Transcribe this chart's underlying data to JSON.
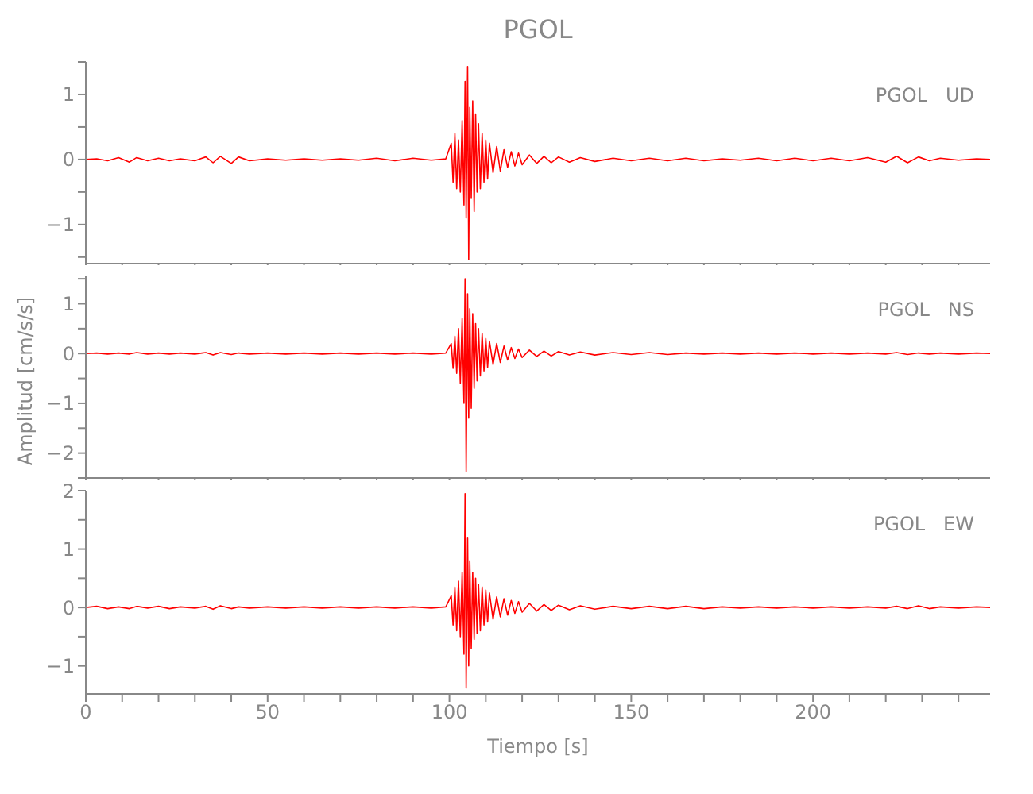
{
  "chart_data": [
    {
      "type": "line",
      "title": "PGOL",
      "annotations": [
        "PGOL   UD"
      ],
      "tick_labels": "y",
      "xlim": [
        0,
        248.7
      ],
      "ylim": [
        -1.6,
        1.5
      ],
      "xticks": [
        0,
        {
          "value": 10,
          "label": null
        },
        {
          "value": 20,
          "label": null
        },
        {
          "value": 30,
          "label": null
        },
        {
          "value": 40,
          "label": null
        },
        50,
        {
          "value": 60,
          "label": null
        },
        {
          "value": 70,
          "label": null
        },
        {
          "value": 80,
          "label": null
        },
        {
          "value": 90,
          "label": null
        },
        100,
        {
          "value": 110,
          "label": null
        },
        {
          "value": 120,
          "label": null
        },
        {
          "value": 130,
          "label": null
        },
        {
          "value": 140,
          "label": null
        },
        150,
        {
          "value": 160,
          "label": null
        },
        {
          "value": 170,
          "label": null
        },
        {
          "value": 180,
          "label": null
        },
        {
          "value": 190,
          "label": null
        },
        200,
        {
          "value": 210,
          "label": null
        },
        {
          "value": 220,
          "label": null
        },
        {
          "value": 230,
          "label": null
        },
        {
          "value": 240,
          "label": null
        }
      ],
      "yticks": [
        {
          "value": -1.5,
          "label": null
        },
        -1,
        {
          "value": -0.5,
          "label": null
        },
        0,
        {
          "value": 0.5,
          "label": null
        },
        1,
        {
          "value": 1.5,
          "label": null
        }
      ],
      "x": [
        0,
        3,
        6,
        9,
        12,
        14,
        17,
        20,
        23,
        26,
        30,
        33,
        35,
        37,
        40,
        42,
        45,
        50,
        55,
        60,
        65,
        70,
        75,
        80,
        85,
        90,
        95,
        99,
        100.5,
        101,
        101.5,
        102,
        102.5,
        103,
        103.5,
        104,
        104.3,
        104.6,
        105,
        105.3,
        105.6,
        106,
        106.4,
        106.8,
        107.2,
        107.6,
        108,
        108.5,
        109,
        109.5,
        110,
        110.5,
        111,
        112,
        113,
        114,
        115,
        116,
        117,
        118,
        119,
        120,
        122,
        124,
        126,
        128,
        130,
        133,
        136,
        140,
        145,
        150,
        155,
        160,
        165,
        170,
        175,
        180,
        185,
        190,
        195,
        200,
        205,
        210,
        215,
        220,
        223,
        226,
        229,
        232,
        235,
        240,
        245,
        248.7
      ],
      "series": [
        {
          "color": "#ff0000",
          "values": [
            0.0,
            0.01,
            -0.02,
            0.03,
            -0.04,
            0.03,
            -0.02,
            0.02,
            -0.02,
            0.01,
            -0.02,
            0.04,
            -0.05,
            0.05,
            -0.06,
            0.04,
            -0.02,
            0.01,
            -0.01,
            0.01,
            -0.01,
            0.01,
            -0.01,
            0.02,
            -0.02,
            0.02,
            -0.01,
            0.01,
            0.25,
            -0.35,
            0.4,
            -0.45,
            0.3,
            -0.5,
            0.6,
            -0.7,
            1.2,
            -0.9,
            1.43,
            -1.54,
            0.8,
            -0.6,
            0.9,
            -0.8,
            0.7,
            -0.5,
            0.55,
            -0.45,
            0.4,
            -0.35,
            0.3,
            -0.3,
            0.25,
            -0.2,
            0.2,
            -0.18,
            0.15,
            -0.12,
            0.12,
            -0.1,
            0.1,
            -0.08,
            0.07,
            -0.06,
            0.05,
            -0.05,
            0.04,
            -0.04,
            0.03,
            -0.03,
            0.02,
            -0.02,
            0.02,
            -0.02,
            0.02,
            -0.02,
            0.01,
            -0.01,
            0.02,
            -0.02,
            0.02,
            -0.02,
            0.02,
            -0.02,
            0.03,
            -0.04,
            0.05,
            -0.05,
            0.04,
            -0.02,
            0.02,
            -0.01,
            0.01,
            0.0
          ]
        }
      ]
    },
    {
      "type": "line",
      "ylabel": "Amplitud [cm/s/s]",
      "annotations": [
        "PGOL   NS"
      ],
      "tick_labels": "y",
      "xlim": [
        0,
        248.7
      ],
      "ylim": [
        -2.5,
        1.55
      ],
      "xticks": [
        0,
        {
          "value": 10,
          "label": null
        },
        {
          "value": 20,
          "label": null
        },
        {
          "value": 30,
          "label": null
        },
        {
          "value": 40,
          "label": null
        },
        50,
        {
          "value": 60,
          "label": null
        },
        {
          "value": 70,
          "label": null
        },
        {
          "value": 80,
          "label": null
        },
        {
          "value": 90,
          "label": null
        },
        100,
        {
          "value": 110,
          "label": null
        },
        {
          "value": 120,
          "label": null
        },
        {
          "value": 130,
          "label": null
        },
        {
          "value": 140,
          "label": null
        },
        150,
        {
          "value": 160,
          "label": null
        },
        {
          "value": 170,
          "label": null
        },
        {
          "value": 180,
          "label": null
        },
        {
          "value": 190,
          "label": null
        },
        200,
        {
          "value": 210,
          "label": null
        },
        {
          "value": 220,
          "label": null
        },
        {
          "value": 230,
          "label": null
        },
        {
          "value": 240,
          "label": null
        }
      ],
      "yticks": [
        {
          "value": -2.5,
          "label": null
        },
        -2,
        {
          "value": -1.5,
          "label": null
        },
        -1,
        {
          "value": -0.5,
          "label": null
        },
        0,
        {
          "value": 0.5,
          "label": null
        },
        1,
        {
          "value": 1.5,
          "label": null
        }
      ],
      "x": [
        0,
        3,
        6,
        9,
        12,
        14,
        17,
        20,
        23,
        26,
        30,
        33,
        35,
        37,
        40,
        42,
        45,
        50,
        55,
        60,
        65,
        70,
        75,
        80,
        85,
        90,
        95,
        99,
        100.5,
        101,
        101.5,
        102,
        102.5,
        103,
        103.5,
        104,
        104.3,
        104.6,
        105,
        105.3,
        105.6,
        106,
        106.4,
        106.8,
        107.2,
        107.6,
        108,
        108.5,
        109,
        109.5,
        110,
        110.5,
        111,
        112,
        113,
        114,
        115,
        116,
        117,
        118,
        119,
        120,
        122,
        124,
        126,
        128,
        130,
        133,
        136,
        140,
        145,
        150,
        155,
        160,
        165,
        170,
        175,
        180,
        185,
        190,
        195,
        200,
        205,
        210,
        215,
        220,
        223,
        226,
        229,
        232,
        235,
        240,
        245,
        248.7
      ],
      "series": [
        {
          "color": "#ff0000",
          "values": [
            0.0,
            0.01,
            -0.01,
            0.01,
            -0.01,
            0.02,
            -0.01,
            0.01,
            -0.01,
            0.01,
            -0.01,
            0.02,
            -0.03,
            0.02,
            -0.02,
            0.01,
            -0.01,
            0.01,
            -0.01,
            0.01,
            -0.01,
            0.01,
            -0.01,
            0.01,
            -0.01,
            0.01,
            -0.01,
            0.01,
            0.2,
            -0.3,
            0.35,
            -0.4,
            0.5,
            -0.6,
            0.7,
            -1.0,
            1.5,
            -2.37,
            1.2,
            -1.3,
            0.9,
            -1.1,
            0.8,
            -0.7,
            0.6,
            -0.55,
            0.5,
            -0.45,
            0.4,
            -0.35,
            0.3,
            -0.28,
            0.25,
            -0.22,
            0.2,
            -0.18,
            0.15,
            -0.13,
            0.12,
            -0.1,
            0.09,
            -0.08,
            0.07,
            -0.06,
            0.05,
            -0.05,
            0.04,
            -0.03,
            0.03,
            -0.03,
            0.02,
            -0.02,
            0.02,
            -0.02,
            0.01,
            -0.01,
            0.01,
            -0.01,
            0.01,
            -0.01,
            0.01,
            -0.01,
            0.01,
            -0.01,
            0.01,
            -0.01,
            0.02,
            -0.02,
            0.01,
            -0.01,
            0.01,
            -0.01,
            0.01,
            0.0
          ]
        }
      ]
    },
    {
      "type": "line",
      "xlabel": "Tiempo [s]",
      "annotations": [
        "PGOL   EW"
      ],
      "xlim": [
        0,
        248.7
      ],
      "ylim": [
        -1.48,
        2
      ],
      "xticks": [
        0,
        {
          "value": 10,
          "label": null
        },
        {
          "value": 20,
          "label": null
        },
        {
          "value": 30,
          "label": null
        },
        {
          "value": 40,
          "label": null
        },
        50,
        {
          "value": 60,
          "label": null
        },
        {
          "value": 70,
          "label": null
        },
        {
          "value": 80,
          "label": null
        },
        {
          "value": 90,
          "label": null
        },
        100,
        {
          "value": 110,
          "label": null
        },
        {
          "value": 120,
          "label": null
        },
        {
          "value": 130,
          "label": null
        },
        {
          "value": 140,
          "label": null
        },
        150,
        {
          "value": 160,
          "label": null
        },
        {
          "value": 170,
          "label": null
        },
        {
          "value": 180,
          "label": null
        },
        {
          "value": 190,
          "label": null
        },
        200,
        {
          "value": 210,
          "label": null
        },
        {
          "value": 220,
          "label": null
        },
        {
          "value": 230,
          "label": null
        },
        {
          "value": 240,
          "label": null
        }
      ],
      "yticks": [
        -1,
        {
          "value": -0.5,
          "label": null
        },
        0,
        {
          "value": 0.5,
          "label": null
        },
        1,
        {
          "value": 1.5,
          "label": null
        },
        2
      ],
      "x": [
        0,
        3,
        6,
        9,
        12,
        14,
        17,
        20,
        23,
        26,
        30,
        33,
        35,
        37,
        40,
        42,
        45,
        50,
        55,
        60,
        65,
        70,
        75,
        80,
        85,
        90,
        95,
        99,
        100.5,
        101,
        101.5,
        102,
        102.5,
        103,
        103.5,
        104,
        104.3,
        104.6,
        105,
        105.3,
        105.6,
        106,
        106.4,
        106.8,
        107.2,
        107.6,
        108,
        108.5,
        109,
        109.5,
        110,
        110.5,
        111,
        112,
        113,
        114,
        115,
        116,
        117,
        118,
        119,
        120,
        122,
        124,
        126,
        128,
        130,
        133,
        136,
        140,
        145,
        150,
        155,
        160,
        165,
        170,
        175,
        180,
        185,
        190,
        195,
        200,
        205,
        210,
        215,
        220,
        223,
        226,
        229,
        232,
        235,
        240,
        245,
        248.7
      ],
      "series": [
        {
          "color": "#ff0000",
          "values": [
            0.0,
            0.02,
            -0.02,
            0.01,
            -0.02,
            0.02,
            -0.01,
            0.02,
            -0.02,
            0.01,
            -0.01,
            0.02,
            -0.03,
            0.03,
            -0.02,
            0.01,
            -0.01,
            0.01,
            -0.01,
            0.01,
            -0.01,
            0.01,
            -0.01,
            0.01,
            -0.01,
            0.01,
            -0.01,
            0.01,
            0.2,
            -0.3,
            0.35,
            -0.4,
            0.45,
            -0.5,
            0.6,
            -0.8,
            1.95,
            -1.38,
            1.2,
            -1.0,
            0.8,
            -0.7,
            0.6,
            -0.55,
            0.5,
            -0.45,
            0.4,
            -0.4,
            0.35,
            -0.3,
            0.3,
            -0.25,
            0.25,
            -0.2,
            0.18,
            -0.16,
            0.15,
            -0.13,
            0.12,
            -0.1,
            0.1,
            -0.08,
            0.07,
            -0.06,
            0.05,
            -0.05,
            0.04,
            -0.04,
            0.03,
            -0.03,
            0.02,
            -0.02,
            0.02,
            -0.02,
            0.02,
            -0.02,
            0.01,
            -0.01,
            0.01,
            -0.01,
            0.01,
            -0.01,
            0.01,
            -0.01,
            0.01,
            -0.01,
            0.02,
            -0.02,
            0.03,
            -0.02,
            0.01,
            -0.01,
            0.01,
            0.0
          ]
        }
      ]
    }
  ]
}
